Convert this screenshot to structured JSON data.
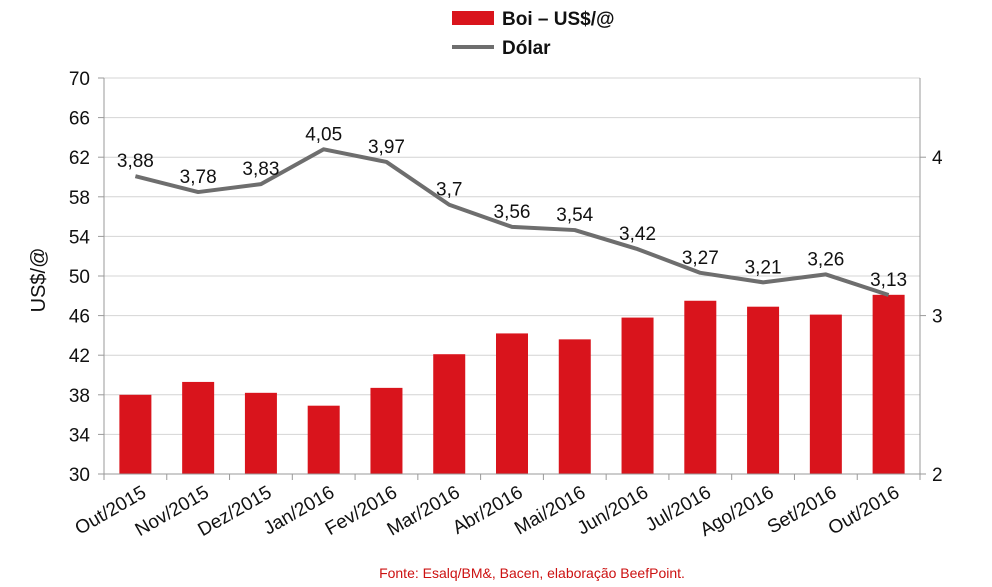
{
  "chart_data": {
    "type": "bar+line",
    "categories": [
      "Out/2015",
      "Nov/2015",
      "Dez/2015",
      "Jan/2016",
      "Fev/2016",
      "Mar/2016",
      "Abr/2016",
      "Mai/2016",
      "Jun/2016",
      "Jul/2016",
      "Ago/2016",
      "Set/2016",
      "Out/2016"
    ],
    "series": [
      {
        "name": "Boi – US$/@",
        "type": "bar",
        "axis": "left",
        "color": "#d9141c",
        "values": [
          38.0,
          39.3,
          38.2,
          36.9,
          38.7,
          42.1,
          44.2,
          43.6,
          45.8,
          47.5,
          46.9,
          46.1,
          48.1
        ]
      },
      {
        "name": "Dólar",
        "type": "line",
        "axis": "right",
        "color": "#6e6e6e",
        "values": [
          3.88,
          3.78,
          3.83,
          4.05,
          3.97,
          3.7,
          3.56,
          3.54,
          3.42,
          3.27,
          3.21,
          3.26,
          3.13
        ],
        "labels": [
          "3,88",
          "3,78",
          "3,83",
          "4,05",
          "3,97",
          "3,7",
          "3,56",
          "3,54",
          "3,42",
          "3,27",
          "3,21",
          "3,26",
          "3,13"
        ]
      }
    ],
    "ylabel": "US$/@",
    "ylim": [
      30,
      70
    ],
    "yticks": [
      "30",
      "34",
      "38",
      "42",
      "46",
      "50",
      "54",
      "58",
      "62",
      "66",
      "70"
    ],
    "y2lim": [
      2,
      4.5
    ],
    "y2ticks": [
      "2",
      "3",
      "4"
    ],
    "grid": true,
    "legend_position": "top-center",
    "source": "Fonte:  Esalq/BM&,  Bacen,  elaboração  BeefPoint."
  }
}
